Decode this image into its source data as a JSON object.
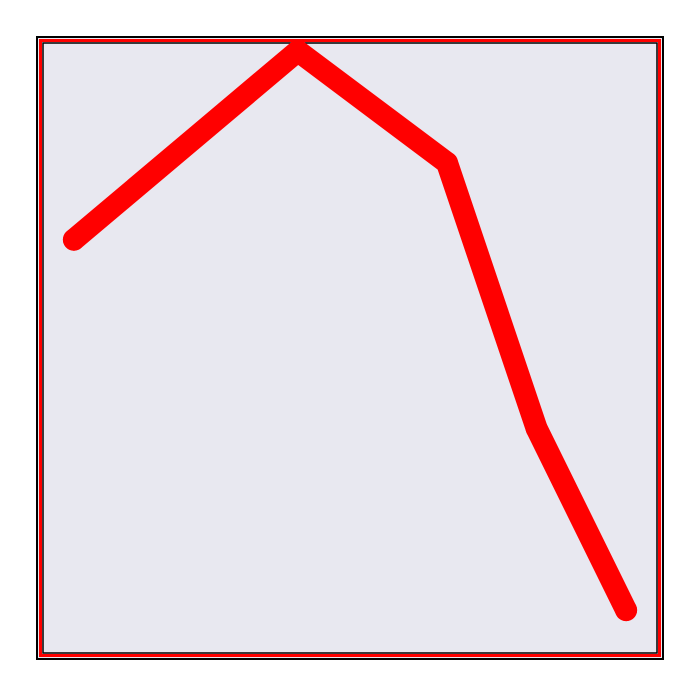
{
  "chart_data": {
    "type": "line",
    "title": "",
    "xlabel": "",
    "ylabel": "",
    "x": [
      0,
      1.5,
      2.5,
      3.1,
      3.7
    ],
    "xlim": [
      -0.2,
      3.9
    ],
    "ylim": [
      -0.3,
      4.05
    ],
    "grid": false,
    "legend": "none",
    "series": [
      {
        "values": [
          2.65,
          4.0,
          3.2,
          1.3,
          0.0
        ]
      }
    ]
  },
  "colors": {
    "plot_background": "#e8e8f0",
    "frame_outer": "#000000",
    "frame_inner": "#ff0000",
    "series_line": "#ff0000"
  }
}
